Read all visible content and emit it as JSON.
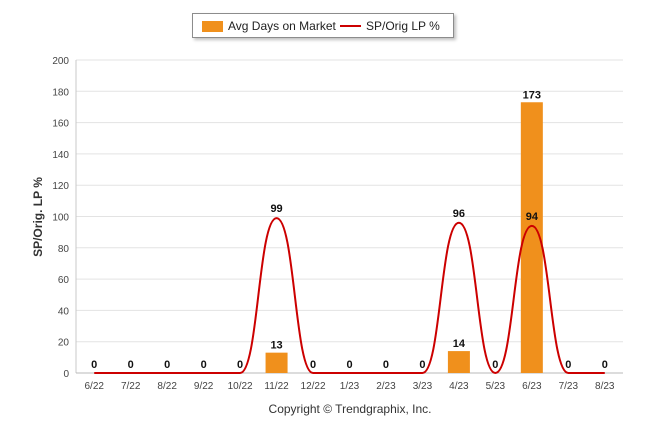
{
  "chart_data": {
    "type": "bar",
    "categories": [
      "6/22",
      "7/22",
      "8/22",
      "9/22",
      "10/22",
      "11/22",
      "12/22",
      "1/23",
      "2/23",
      "3/23",
      "4/23",
      "5/23",
      "6/23",
      "7/23",
      "8/23"
    ],
    "series": [
      {
        "name": "Avg Days on Market",
        "type": "bar",
        "color": "#f0901c",
        "values": [
          0,
          0,
          0,
          0,
          0,
          13,
          0,
          0,
          0,
          0,
          14,
          0,
          173,
          0,
          0
        ]
      },
      {
        "name": "SP/Orig LP %",
        "type": "line",
        "color": "#cc0000",
        "values": [
          0,
          0,
          0,
          0,
          0,
          99,
          0,
          0,
          0,
          0,
          96,
          0,
          94,
          0,
          0
        ]
      }
    ],
    "ylabel": "SP/Orig. LP %",
    "ylim": [
      0,
      200
    ],
    "yticks": [
      0,
      20,
      40,
      60,
      80,
      100,
      120,
      140,
      160,
      180,
      200
    ],
    "grid": true,
    "legend_position": "top-center"
  },
  "legend": {
    "bar_label": "Avg Days on Market",
    "line_label": "SP/Orig LP %"
  },
  "ylabel": "SP/Orig. LP %",
  "copyright": "Copyright © Trendgraphix, Inc."
}
